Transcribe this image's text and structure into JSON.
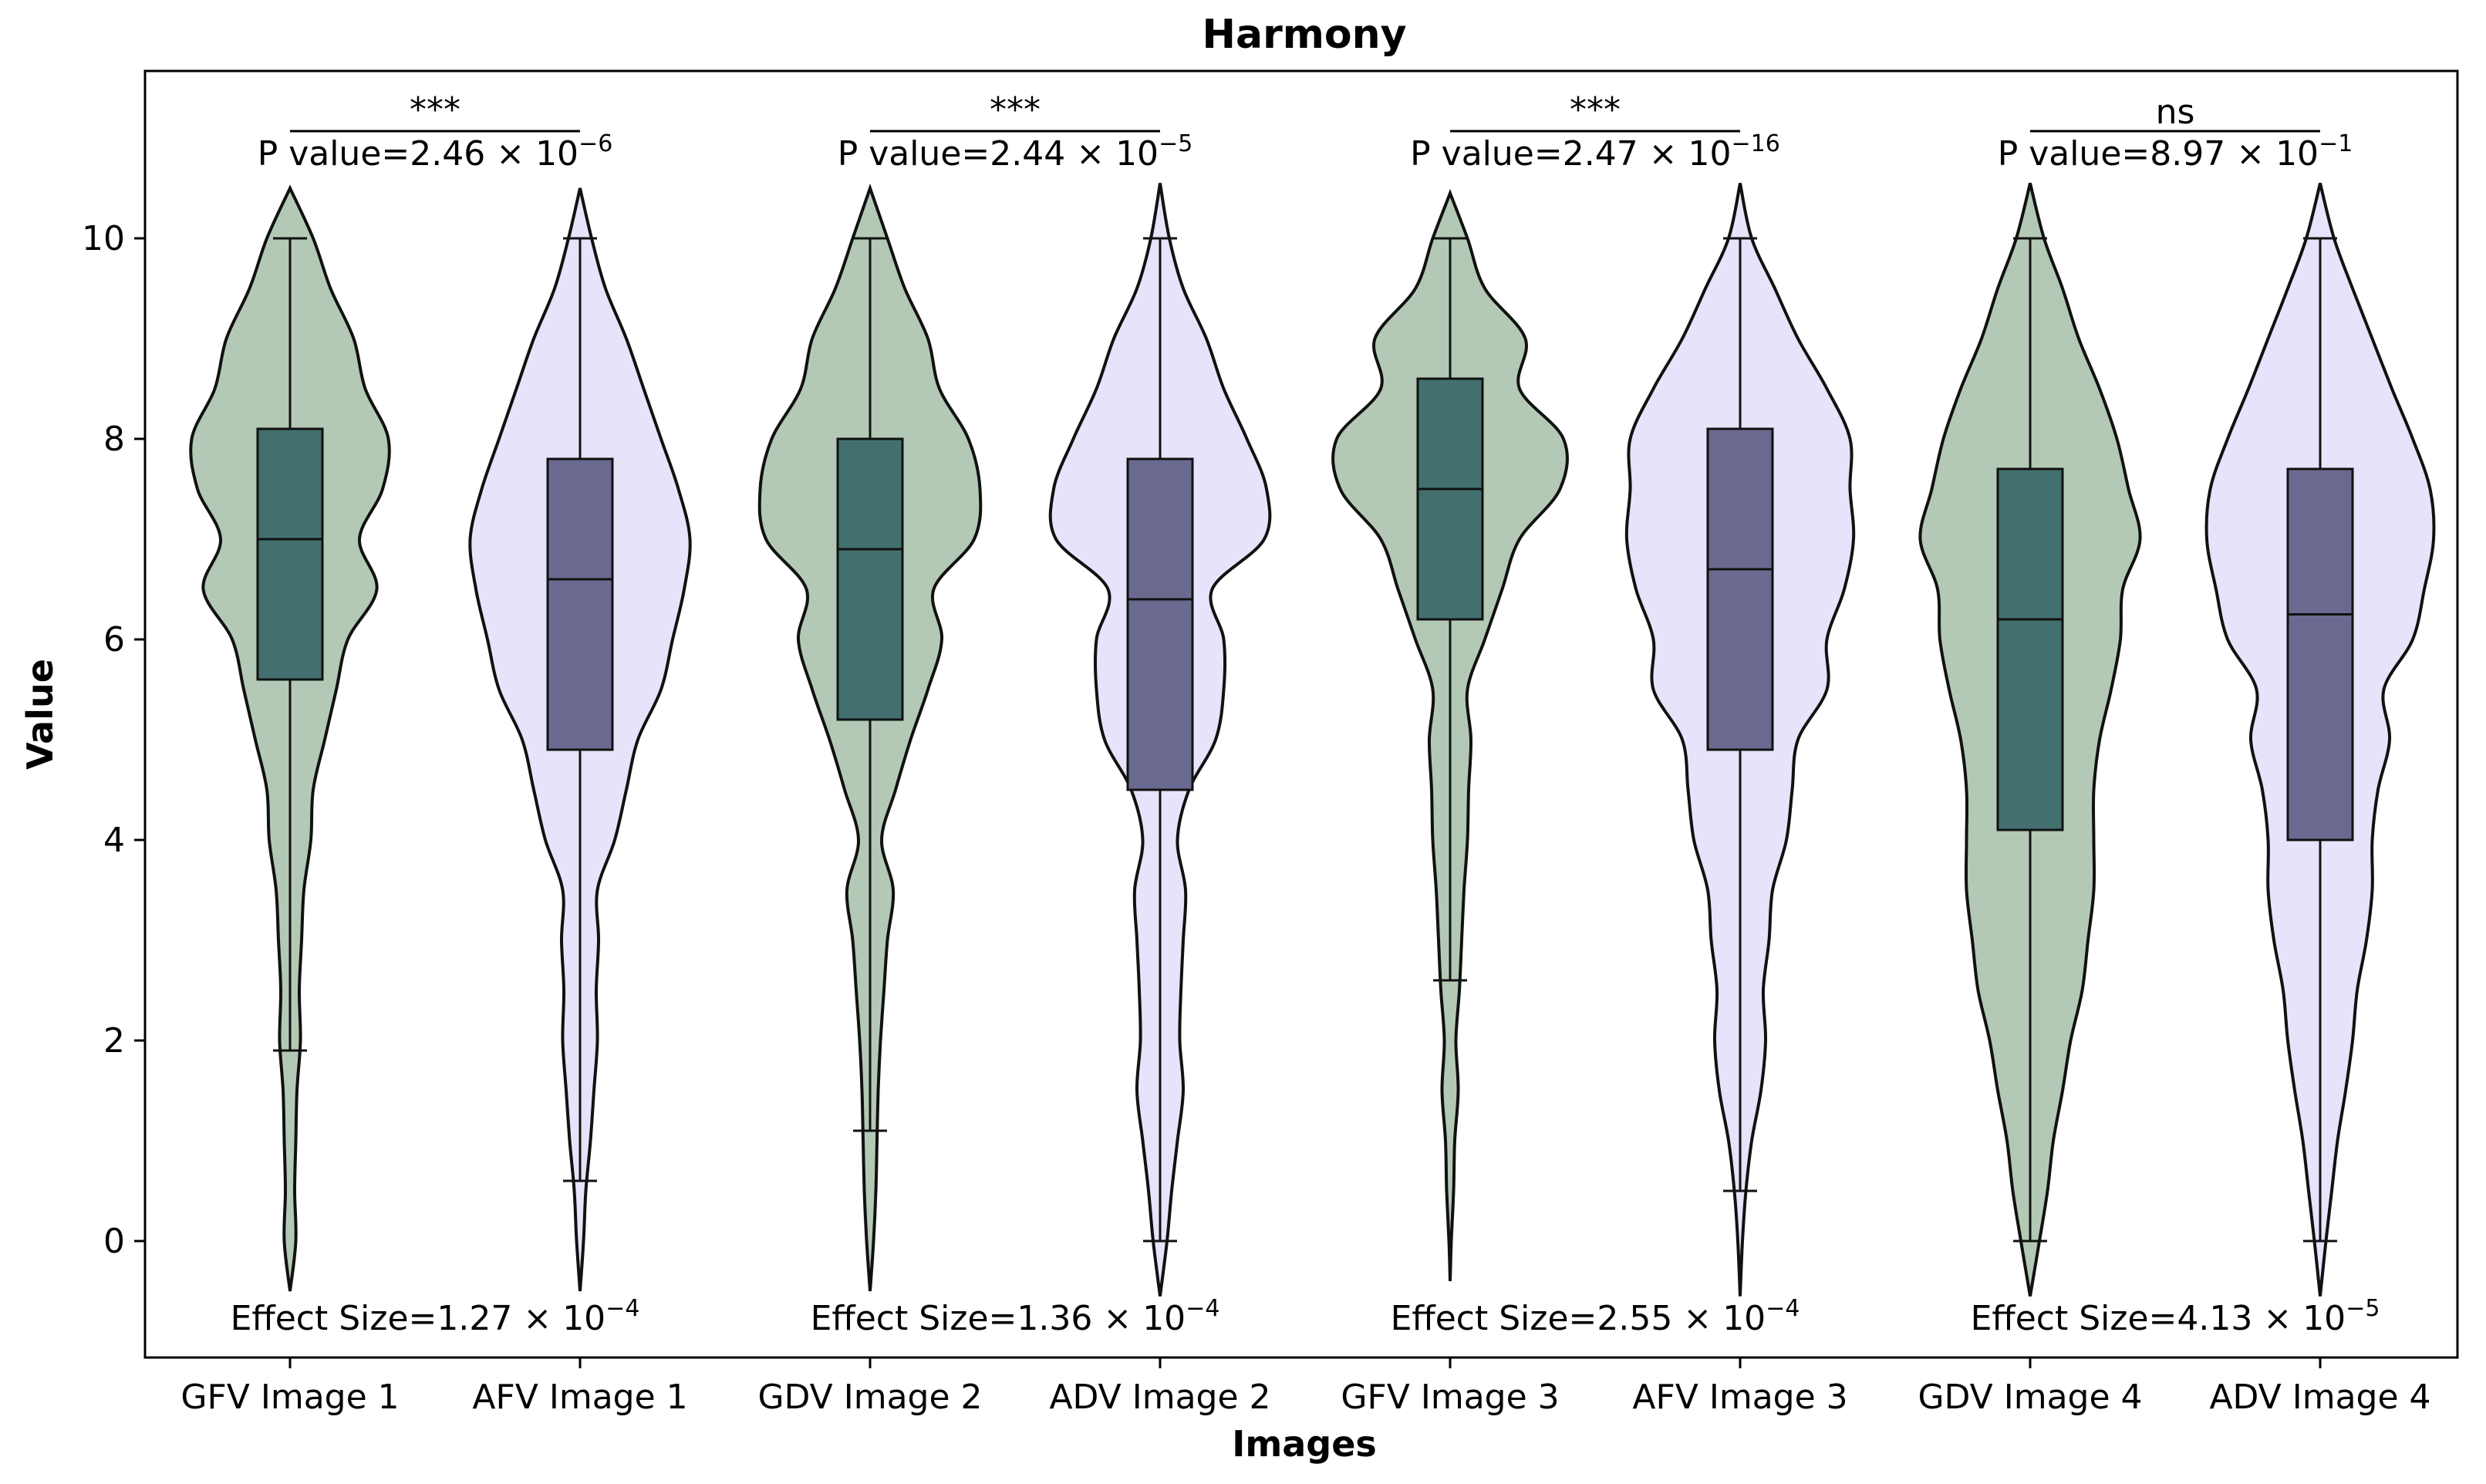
{
  "chart_data": {
    "type": "violin",
    "title": "Harmony",
    "xlabel": "Images",
    "ylabel": "Value",
    "ylim": [
      -1.15,
      11.7
    ],
    "yticks": [
      "0",
      "2",
      "4",
      "6",
      "8",
      "10"
    ],
    "ytick_values": [
      0,
      2,
      4,
      6,
      8,
      10
    ],
    "categories": [
      "GFV Image 1",
      "AFV Image 1",
      "GDV Image 2",
      "ADV Image 2",
      "GFV Image 3",
      "AFV Image 3",
      "GDV Image 4",
      "ADV Image 4"
    ],
    "colors": {
      "green_fill": "#b3c9b5",
      "lavender_fill": "#e6e3fa",
      "green_box": "#43706e",
      "purple_box": "#6a6a91",
      "line": "#111111"
    },
    "series": [
      {
        "name": "GFV Image 1",
        "group": "green",
        "box": {
          "q1": 5.6,
          "median": 7.0,
          "q3": 8.1,
          "whisker_low": 1.9,
          "whisker_high": 10.0
        },
        "range": [
          -0.5,
          10.5
        ],
        "density": [
          [
            -0.5,
            0.02
          ],
          [
            0,
            0.05
          ],
          [
            0.5,
            0.04
          ],
          [
            1,
            0.05
          ],
          [
            1.5,
            0.06
          ],
          [
            2,
            0.09
          ],
          [
            2.5,
            0.08
          ],
          [
            3,
            0.1
          ],
          [
            3.5,
            0.12
          ],
          [
            4,
            0.18
          ],
          [
            4.5,
            0.2
          ],
          [
            5,
            0.3
          ],
          [
            5.5,
            0.4
          ],
          [
            6,
            0.5
          ],
          [
            6.5,
            0.75
          ],
          [
            7,
            0.6
          ],
          [
            7.5,
            0.8
          ],
          [
            8,
            0.85
          ],
          [
            8.5,
            0.65
          ],
          [
            9,
            0.55
          ],
          [
            9.5,
            0.35
          ],
          [
            10,
            0.2
          ],
          [
            10.5,
            0.0
          ]
        ]
      },
      {
        "name": "AFV Image 1",
        "group": "lavender",
        "box": {
          "q1": 4.9,
          "median": 6.6,
          "q3": 7.8,
          "whisker_low": 0.6,
          "whisker_high": 10.0
        },
        "range": [
          -0.5,
          10.5
        ],
        "density": [
          [
            -0.5,
            0.01
          ],
          [
            0,
            0.03
          ],
          [
            0.5,
            0.05
          ],
          [
            1,
            0.09
          ],
          [
            1.5,
            0.12
          ],
          [
            2,
            0.15
          ],
          [
            2.5,
            0.14
          ],
          [
            3,
            0.16
          ],
          [
            3.5,
            0.15
          ],
          [
            4,
            0.3
          ],
          [
            4.5,
            0.4
          ],
          [
            5,
            0.5
          ],
          [
            5.5,
            0.7
          ],
          [
            6,
            0.8
          ],
          [
            6.5,
            0.9
          ],
          [
            7,
            0.95
          ],
          [
            7.5,
            0.85
          ],
          [
            8,
            0.7
          ],
          [
            8.5,
            0.55
          ],
          [
            9,
            0.4
          ],
          [
            9.5,
            0.22
          ],
          [
            10,
            0.1
          ],
          [
            10.5,
            0.0
          ]
        ]
      },
      {
        "name": "GDV Image 2",
        "group": "green",
        "box": {
          "q1": 5.2,
          "median": 6.9,
          "q3": 8.0,
          "whisker_low": 1.1,
          "whisker_high": 10.0
        },
        "range": [
          -0.5,
          10.5
        ],
        "density": [
          [
            -0.5,
            0.01
          ],
          [
            0,
            0.03
          ],
          [
            0.5,
            0.05
          ],
          [
            1,
            0.06
          ],
          [
            1.5,
            0.07
          ],
          [
            2,
            0.09
          ],
          [
            2.5,
            0.12
          ],
          [
            3,
            0.15
          ],
          [
            3.5,
            0.2
          ],
          [
            4,
            0.1
          ],
          [
            4.5,
            0.22
          ],
          [
            5,
            0.35
          ],
          [
            5.5,
            0.5
          ],
          [
            6,
            0.62
          ],
          [
            6.5,
            0.55
          ],
          [
            7,
            0.9
          ],
          [
            7.5,
            0.95
          ],
          [
            8,
            0.85
          ],
          [
            8.5,
            0.6
          ],
          [
            9,
            0.5
          ],
          [
            9.5,
            0.3
          ],
          [
            10,
            0.15
          ],
          [
            10.5,
            0.0
          ]
        ]
      },
      {
        "name": "ADV Image 2",
        "group": "lavender",
        "box": {
          "q1": 4.5,
          "median": 6.4,
          "q3": 7.8,
          "whisker_low": 0.0,
          "whisker_high": 10.0
        },
        "range": [
          -0.55,
          10.55
        ],
        "density": [
          [
            -0.55,
            0.02
          ],
          [
            0,
            0.06
          ],
          [
            0.5,
            0.1
          ],
          [
            1,
            0.15
          ],
          [
            1.5,
            0.2
          ],
          [
            2,
            0.17
          ],
          [
            2.5,
            0.18
          ],
          [
            3,
            0.2
          ],
          [
            3.5,
            0.22
          ],
          [
            4,
            0.15
          ],
          [
            4.5,
            0.25
          ],
          [
            5,
            0.48
          ],
          [
            5.5,
            0.55
          ],
          [
            6,
            0.55
          ],
          [
            6.5,
            0.45
          ],
          [
            7,
            0.9
          ],
          [
            7.5,
            0.92
          ],
          [
            8,
            0.75
          ],
          [
            8.5,
            0.55
          ],
          [
            9,
            0.4
          ],
          [
            9.5,
            0.2
          ],
          [
            10,
            0.08
          ],
          [
            10.55,
            0.0
          ]
        ]
      },
      {
        "name": "GFV Image 3",
        "group": "green",
        "box": {
          "q1": 6.2,
          "median": 7.5,
          "q3": 8.6,
          "whisker_low": 2.6,
          "whisker_high": 10.0
        },
        "range": [
          -0.4,
          10.45
        ],
        "density": [
          [
            -0.4,
            0.0
          ],
          [
            0,
            0.01
          ],
          [
            0.5,
            0.03
          ],
          [
            1,
            0.04
          ],
          [
            1.5,
            0.07
          ],
          [
            2,
            0.05
          ],
          [
            2.5,
            0.08
          ],
          [
            3,
            0.1
          ],
          [
            3.5,
            0.12
          ],
          [
            4,
            0.15
          ],
          [
            4.5,
            0.16
          ],
          [
            5,
            0.18
          ],
          [
            5.5,
            0.15
          ],
          [
            6,
            0.3
          ],
          [
            6.5,
            0.45
          ],
          [
            7,
            0.6
          ],
          [
            7.5,
            0.95
          ],
          [
            8,
            0.98
          ],
          [
            8.5,
            0.6
          ],
          [
            9,
            0.65
          ],
          [
            9.5,
            0.3
          ],
          [
            10,
            0.15
          ],
          [
            10.45,
            0.0
          ]
        ]
      },
      {
        "name": "AFV Image 3",
        "group": "lavender",
        "box": {
          "q1": 4.9,
          "median": 6.7,
          "q3": 8.1,
          "whisker_low": 0.5,
          "whisker_high": 10.0
        },
        "range": [
          -0.55,
          10.55
        ],
        "density": [
          [
            -0.55,
            0.0
          ],
          [
            0,
            0.02
          ],
          [
            0.5,
            0.05
          ],
          [
            1,
            0.1
          ],
          [
            1.5,
            0.18
          ],
          [
            2,
            0.22
          ],
          [
            2.5,
            0.2
          ],
          [
            3,
            0.25
          ],
          [
            3.5,
            0.28
          ],
          [
            4,
            0.4
          ],
          [
            4.5,
            0.45
          ],
          [
            5,
            0.5
          ],
          [
            5.5,
            0.75
          ],
          [
            6,
            0.75
          ],
          [
            6.5,
            0.9
          ],
          [
            7,
            0.98
          ],
          [
            7.5,
            0.95
          ],
          [
            8,
            0.95
          ],
          [
            8.5,
            0.75
          ],
          [
            9,
            0.5
          ],
          [
            9.5,
            0.3
          ],
          [
            10,
            0.1
          ],
          [
            10.55,
            0.0
          ]
        ]
      },
      {
        "name": "GDV Image 4",
        "group": "green",
        "box": {
          "q1": 4.1,
          "median": 6.2,
          "q3": 7.7,
          "whisker_low": 0.0,
          "whisker_high": 10.0
        },
        "range": [
          -0.55,
          10.55
        ],
        "density": [
          [
            -0.55,
            0.0
          ],
          [
            0,
            0.08
          ],
          [
            0.5,
            0.15
          ],
          [
            1,
            0.2
          ],
          [
            1.5,
            0.28
          ],
          [
            2,
            0.35
          ],
          [
            2.5,
            0.45
          ],
          [
            3,
            0.5
          ],
          [
            3.5,
            0.55
          ],
          [
            4,
            0.55
          ],
          [
            4.5,
            0.55
          ],
          [
            5,
            0.6
          ],
          [
            5.5,
            0.7
          ],
          [
            6,
            0.78
          ],
          [
            6.5,
            0.8
          ],
          [
            7,
            0.95
          ],
          [
            7.5,
            0.85
          ],
          [
            8,
            0.75
          ],
          [
            8.5,
            0.6
          ],
          [
            9,
            0.42
          ],
          [
            9.5,
            0.28
          ],
          [
            10,
            0.12
          ],
          [
            10.55,
            0.0
          ]
        ]
      },
      {
        "name": "ADV Image 4",
        "group": "lavender",
        "box": {
          "q1": 4.0,
          "median": 6.25,
          "q3": 7.7,
          "whisker_low": 0.0,
          "whisker_high": 10.0
        },
        "range": [
          -0.55,
          10.55
        ],
        "density": [
          [
            -0.55,
            0.0
          ],
          [
            0,
            0.05
          ],
          [
            0.5,
            0.1
          ],
          [
            1,
            0.15
          ],
          [
            1.5,
            0.22
          ],
          [
            2,
            0.28
          ],
          [
            2.5,
            0.32
          ],
          [
            3,
            0.4
          ],
          [
            3.5,
            0.45
          ],
          [
            4,
            0.45
          ],
          [
            4.5,
            0.5
          ],
          [
            5,
            0.6
          ],
          [
            5.5,
            0.55
          ],
          [
            6,
            0.8
          ],
          [
            6.5,
            0.9
          ],
          [
            7,
            0.98
          ],
          [
            7.5,
            0.95
          ],
          [
            8,
            0.8
          ],
          [
            8.5,
            0.62
          ],
          [
            9,
            0.45
          ],
          [
            9.5,
            0.28
          ],
          [
            10,
            0.12
          ],
          [
            10.55,
            0.0
          ]
        ]
      }
    ],
    "comparisons": [
      {
        "between": [
          0,
          1
        ],
        "stars": "***",
        "p_mantissa": "2.46",
        "p_exp": "−6",
        "effect_mantissa": "1.27",
        "effect_exp": "−4"
      },
      {
        "between": [
          2,
          3
        ],
        "stars": "***",
        "p_mantissa": "2.44",
        "p_exp": "−5",
        "effect_mantissa": "1.36",
        "effect_exp": "−4"
      },
      {
        "between": [
          4,
          5
        ],
        "stars": "***",
        "p_mantissa": "2.47",
        "p_exp": "−16",
        "effect_mantissa": "2.55",
        "effect_exp": "−4"
      },
      {
        "between": [
          6,
          7
        ],
        "stars": "ns",
        "p_mantissa": "8.97",
        "p_exp": "−1",
        "effect_mantissa": "4.13",
        "effect_exp": "−5"
      }
    ],
    "labels": {
      "p_prefix": "P value=",
      "effect_prefix": "Effect Size=",
      "times": "×",
      "base": "10"
    }
  }
}
